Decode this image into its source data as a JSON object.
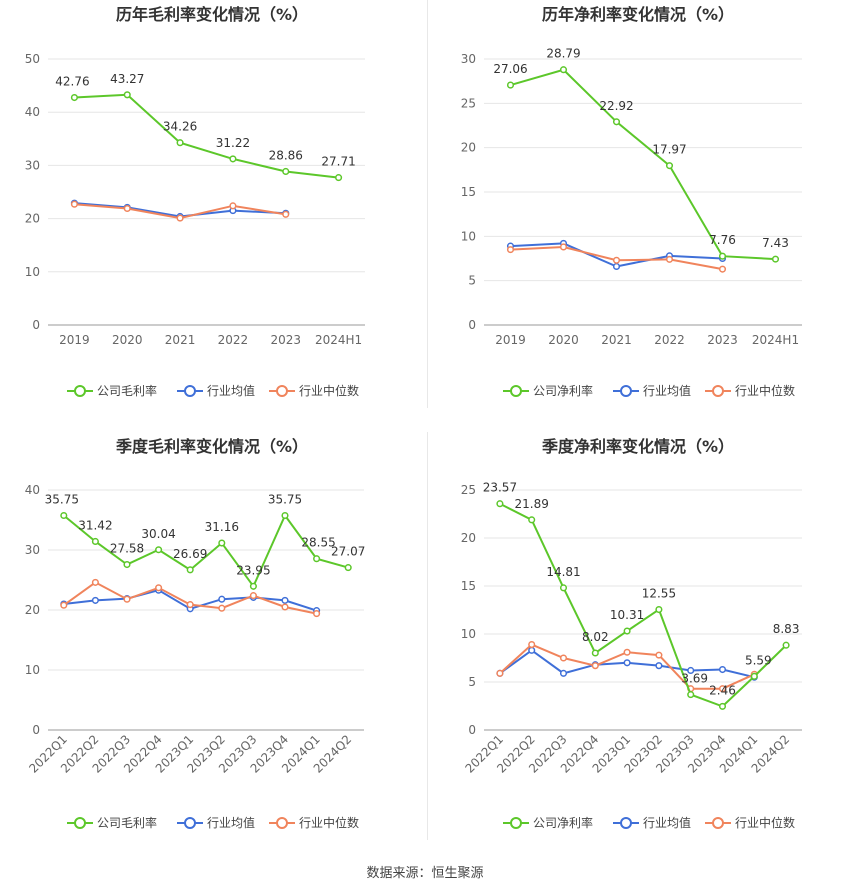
{
  "source_text": "数据来源：恒生聚源",
  "colors": {
    "company": "#5cc72a",
    "avg": "#3f6fd8",
    "median": "#f0845c"
  },
  "chart_data": [
    {
      "type": "line",
      "title": "历年毛利率变化情况（%）",
      "categories": [
        "2019",
        "2020",
        "2021",
        "2022",
        "2023",
        "2024H1"
      ],
      "ylim": [
        0,
        50
      ],
      "yticks": [
        0,
        10,
        20,
        30,
        40,
        50
      ],
      "rotate_labels": false,
      "series": [
        {
          "name": "公司毛利率",
          "color": "#5cc72a",
          "values": [
            42.76,
            43.27,
            34.26,
            31.22,
            28.86,
            27.71
          ],
          "labels": true
        },
        {
          "name": "行业均值",
          "color": "#3f6fd8",
          "values": [
            22.9,
            22.1,
            20.4,
            21.5,
            21.0,
            null
          ],
          "labels": false
        },
        {
          "name": "行业中位数",
          "color": "#f0845c",
          "values": [
            22.7,
            21.9,
            20.1,
            22.4,
            20.8,
            null
          ],
          "labels": false
        }
      ]
    },
    {
      "type": "line",
      "title": "历年净利率变化情况（%）",
      "categories": [
        "2019",
        "2020",
        "2021",
        "2022",
        "2023",
        "2024H1"
      ],
      "ylim": [
        0,
        30
      ],
      "yticks": [
        0,
        5,
        10,
        15,
        20,
        25,
        30
      ],
      "rotate_labels": false,
      "series": [
        {
          "name": "公司净利率",
          "color": "#5cc72a",
          "values": [
            27.06,
            28.79,
            22.92,
            17.97,
            7.76,
            7.43
          ],
          "labels": true
        },
        {
          "name": "行业均值",
          "color": "#3f6fd8",
          "values": [
            8.9,
            9.2,
            6.6,
            7.8,
            7.5,
            null
          ],
          "labels": false
        },
        {
          "name": "行业中位数",
          "color": "#f0845c",
          "values": [
            8.5,
            8.8,
            7.3,
            7.4,
            6.3,
            null
          ],
          "labels": false
        }
      ]
    },
    {
      "type": "line",
      "title": "季度毛利率变化情况（%）",
      "categories": [
        "2022Q1",
        "2022Q2",
        "2022Q3",
        "2022Q4",
        "2023Q1",
        "2023Q2",
        "2023Q3",
        "2023Q4",
        "2024Q1",
        "2024Q2"
      ],
      "ylim": [
        0,
        40
      ],
      "yticks": [
        0,
        10,
        20,
        30,
        40
      ],
      "rotate_labels": true,
      "series": [
        {
          "name": "公司毛利率",
          "color": "#5cc72a",
          "values": [
            35.75,
            31.42,
            27.58,
            30.04,
            26.69,
            31.16,
            23.95,
            35.75,
            28.55,
            27.07
          ],
          "labels": true
        },
        {
          "name": "行业均值",
          "color": "#3f6fd8",
          "values": [
            21.0,
            21.6,
            21.9,
            23.3,
            20.2,
            21.8,
            22.1,
            21.6,
            19.9,
            null
          ],
          "labels": false
        },
        {
          "name": "行业中位数",
          "color": "#f0845c",
          "values": [
            20.8,
            24.6,
            21.8,
            23.7,
            20.9,
            20.3,
            22.4,
            20.5,
            19.4,
            null
          ],
          "labels": false
        }
      ]
    },
    {
      "type": "line",
      "title": "季度净利率变化情况（%）",
      "categories": [
        "2022Q1",
        "2022Q2",
        "2022Q3",
        "2022Q4",
        "2023Q1",
        "2023Q2",
        "2023Q3",
        "2023Q4",
        "2024Q1",
        "2024Q2"
      ],
      "ylim": [
        0,
        25
      ],
      "yticks": [
        0,
        5,
        10,
        15,
        20,
        25
      ],
      "rotate_labels": true,
      "series": [
        {
          "name": "公司净利率",
          "color": "#5cc72a",
          "values": [
            23.57,
            21.89,
            14.81,
            8.02,
            10.31,
            12.55,
            3.69,
            2.46,
            5.59,
            8.83
          ],
          "labels": true
        },
        {
          "name": "行业均值",
          "color": "#3f6fd8",
          "values": [
            5.9,
            8.3,
            5.9,
            6.8,
            7.0,
            6.7,
            6.2,
            6.3,
            5.5,
            null
          ],
          "labels": false
        },
        {
          "name": "行业中位数",
          "color": "#f0845c",
          "values": [
            5.9,
            8.9,
            7.5,
            6.7,
            8.1,
            7.8,
            4.3,
            4.3,
            5.8,
            null
          ],
          "labels": false
        }
      ]
    }
  ]
}
